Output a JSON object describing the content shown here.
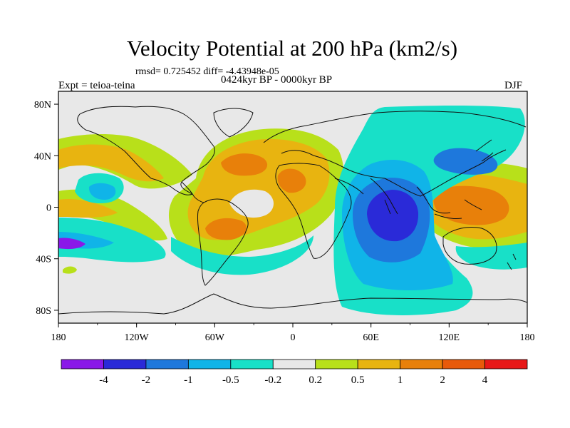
{
  "title": "Velocity Potential at 200 hPa (km2/s)",
  "stats": "rmsd= 0.725452 diff= -4.43948e-05",
  "experiment": "Expt = teioa-teina",
  "period": "0424kyr BP - 0000kyr BP",
  "season": "DJF",
  "x_ticks": [
    "180",
    "120W",
    "60W",
    "0",
    "60E",
    "120E",
    "180"
  ],
  "y_ticks": [
    "80N",
    "40N",
    "0",
    "40S",
    "80S"
  ],
  "colorbar": {
    "colors": [
      "#8a18e8",
      "#2a2ad8",
      "#1e78dc",
      "#10b4e8",
      "#18e0c8",
      "#e8e8e8",
      "#b8e01a",
      "#e8b410",
      "#e8800a",
      "#e85a0a",
      "#e81818"
    ],
    "labels": [
      "-4",
      "-2",
      "-1",
      "-0.5",
      "-0.2",
      "0.2",
      "0.5",
      "1",
      "2",
      "4"
    ]
  },
  "colors": {
    "neutral": "#e8e8e8",
    "coast": "#111111"
  }
}
